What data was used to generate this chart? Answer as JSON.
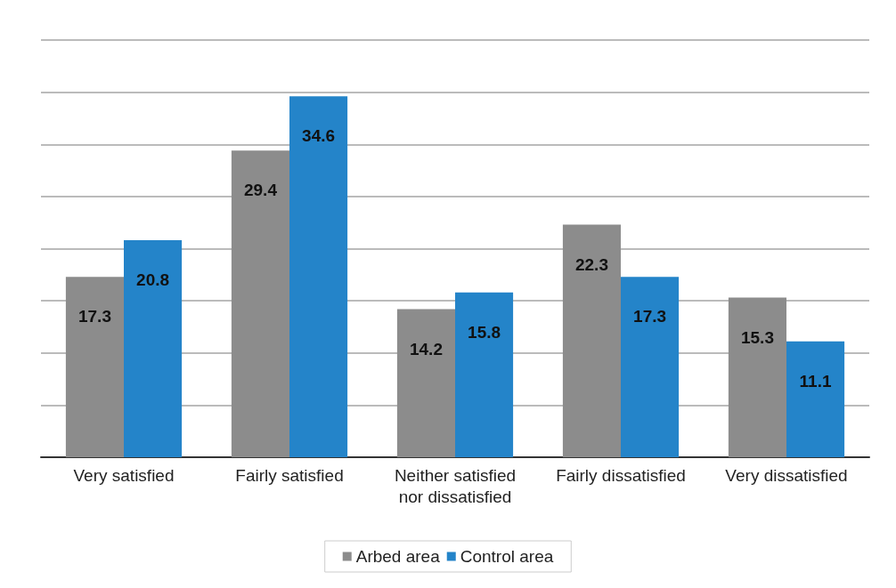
{
  "chart_data": {
    "type": "bar",
    "categories": [
      "Very satisfied",
      "Fairly satisfied",
      "Neither satisfied\nnor dissatisfied",
      "Fairly dissatisfied",
      "Very dissatisfied"
    ],
    "series": [
      {
        "name": "Arbed area",
        "color": "#8c8c8c",
        "values": [
          17.3,
          29.4,
          14.2,
          22.3,
          15.3
        ]
      },
      {
        "name": "Control area",
        "color": "#2484c9",
        "values": [
          20.8,
          34.6,
          15.8,
          17.3,
          11.1
        ]
      }
    ],
    "ylim": [
      0,
      40
    ],
    "yticks": [
      {
        "value": 0,
        "label": null
      },
      {
        "value": 5,
        "label": null
      },
      {
        "value": 10,
        "label": null
      },
      {
        "value": 15,
        "label": null
      },
      {
        "value": 20,
        "label": null
      },
      {
        "value": 25,
        "label": null
      },
      {
        "value": 30,
        "label": null
      },
      {
        "value": 35,
        "label": null
      },
      {
        "value": 40,
        "label": null
      }
    ],
    "tick_labels": "x",
    "grid": "y",
    "data_labels": true,
    "legend": "bottom"
  }
}
